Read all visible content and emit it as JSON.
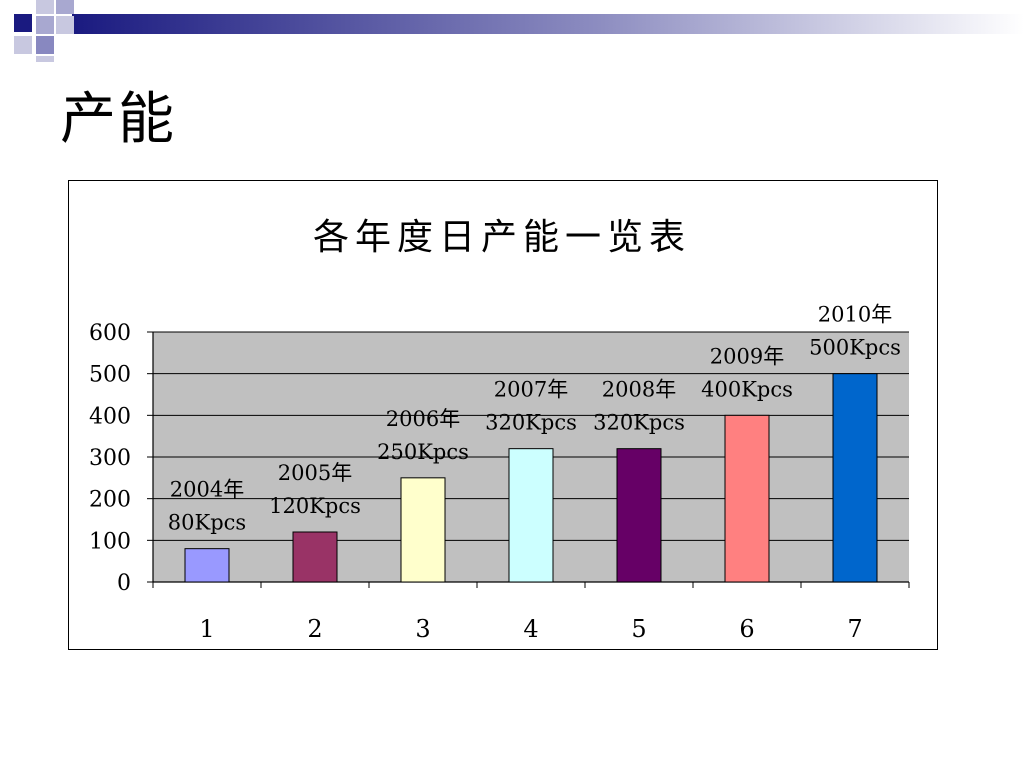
{
  "slide": {
    "title": "产能"
  },
  "chart_data": {
    "type": "bar",
    "title": "各年度日产能一览表",
    "categories": [
      "1",
      "2",
      "3",
      "4",
      "5",
      "6",
      "7"
    ],
    "values": [
      80,
      120,
      250,
      320,
      320,
      400,
      500
    ],
    "data_labels": [
      [
        "2004年",
        "80Kpcs"
      ],
      [
        "2005年",
        "120Kpcs"
      ],
      [
        "2006年",
        "250Kpcs"
      ],
      [
        "2007年",
        "320Kpcs"
      ],
      [
        "2008年",
        "320Kpcs"
      ],
      [
        "2009年",
        "400Kpcs"
      ],
      [
        "2010年",
        "500Kpcs"
      ]
    ],
    "bar_colors": [
      "#9999ff",
      "#993366",
      "#ffffcc",
      "#ccffff",
      "#660066",
      "#ff8080",
      "#0066cc"
    ],
    "ylim": [
      0,
      600
    ],
    "yticks": [
      0,
      100,
      200,
      300,
      400,
      500,
      600
    ],
    "plot_background": "#c0c0c0",
    "grid": true,
    "legend": "none"
  }
}
